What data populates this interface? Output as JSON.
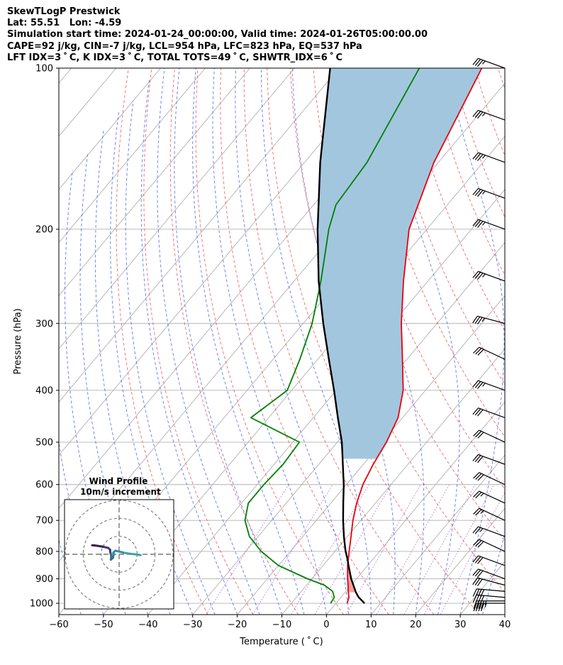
{
  "header": {
    "line1": "SkewTLogP Prestwick",
    "line2": "Lat: 55.51   Lon: -4.59",
    "line3": "Simulation start time: 2024-01-24_00:00:00, Valid time: 2024-01-26T05:00:00.00",
    "line4": "CAPE=92 j/kg, CIN=-7 j/kg, LCL=954 hPa, LFC=823 hPa, EQ=537 hPa",
    "line5": "LFT IDX=3 ˚ C, K IDX=3 ˚ C, TOTAL TOTS=49 ˚ C, SHWTR_IDX=6 ˚ C"
  },
  "chart_data": {
    "type": "line",
    "xlabel": "Temperature ( ˚ C)",
    "ylabel": "Pressure (hPa)",
    "xlim": [
      -60,
      40
    ],
    "ylim": [
      1050,
      100
    ],
    "y_scale": "log",
    "skew": true,
    "grid": true,
    "x_ticks": [
      -60,
      -50,
      -40,
      -30,
      -20,
      -10,
      0,
      10,
      20,
      30,
      40
    ],
    "x_tick_labels": [
      "−60",
      "−50",
      "−40",
      "−30",
      "−20",
      "−10",
      "0",
      "10",
      "20",
      "30",
      "40"
    ],
    "y_ticks": [
      1000,
      900,
      800,
      700,
      600,
      500,
      400,
      300,
      200,
      100
    ],
    "y_tick_labels": [
      "1000",
      "900",
      "800",
      "700",
      "600",
      "500",
      "400",
      "300",
      "200",
      "100"
    ],
    "series": [
      {
        "role": "temperature",
        "color": "#e8000b",
        "points": [
          [
            1000,
            2.5
          ],
          [
            975,
            1.8
          ],
          [
            950,
            0.5
          ],
          [
            925,
            -0.7
          ],
          [
            900,
            -2.0
          ],
          [
            850,
            -4.5
          ],
          [
            800,
            -6.8
          ],
          [
            750,
            -9.2
          ],
          [
            700,
            -11.8
          ],
          [
            650,
            -14.2
          ],
          [
            600,
            -16.3
          ],
          [
            550,
            -17.8
          ],
          [
            500,
            -19.0
          ],
          [
            450,
            -21.0
          ],
          [
            400,
            -25.0
          ],
          [
            350,
            -31.0
          ],
          [
            300,
            -38.0
          ],
          [
            250,
            -45.5
          ],
          [
            200,
            -54.0
          ],
          [
            150,
            -61.0
          ],
          [
            100,
            -68.0
          ]
        ]
      },
      {
        "role": "dewpoint",
        "color": "#008000",
        "points": [
          [
            1000,
            -1.2
          ],
          [
            975,
            -1.5
          ],
          [
            950,
            -3.0
          ],
          [
            925,
            -6.0
          ],
          [
            900,
            -11.0
          ],
          [
            850,
            -20.0
          ],
          [
            800,
            -26.5
          ],
          [
            750,
            -32.0
          ],
          [
            700,
            -36.0
          ],
          [
            650,
            -38.5
          ],
          [
            600,
            -38.5
          ],
          [
            550,
            -38.0
          ],
          [
            500,
            -38.5
          ],
          [
            450,
            -54.0
          ],
          [
            400,
            -51.0
          ],
          [
            350,
            -54.0
          ],
          [
            300,
            -58.0
          ],
          [
            250,
            -64.0
          ],
          [
            200,
            -72.0
          ],
          [
            180,
            -75.0
          ],
          [
            150,
            -76.0
          ],
          [
            100,
            -82.0
          ]
        ]
      },
      {
        "role": "parcel",
        "color": "#000000",
        "points": [
          [
            1000,
            6.4
          ],
          [
            975,
            4.0
          ],
          [
            954,
            2.4
          ],
          [
            925,
            0.5
          ],
          [
            900,
            -1.2
          ],
          [
            850,
            -4.3
          ],
          [
            823,
            -6.0
          ],
          [
            800,
            -7.6
          ],
          [
            750,
            -10.8
          ],
          [
            700,
            -14.0
          ],
          [
            650,
            -17.2
          ],
          [
            600,
            -20.6
          ],
          [
            550,
            -24.6
          ],
          [
            537,
            -25.7
          ],
          [
            500,
            -29.0
          ],
          [
            450,
            -34.5
          ],
          [
            400,
            -40.5
          ],
          [
            350,
            -47.5
          ],
          [
            300,
            -55.5
          ],
          [
            250,
            -64.5
          ],
          [
            200,
            -74.5
          ],
          [
            150,
            -86.5
          ],
          [
            100,
            -102.0
          ]
        ]
      }
    ],
    "shading": [
      {
        "name": "CIN",
        "color": "#f3a0a2",
        "from_hpa": 823,
        "to_hpa": 954
      },
      {
        "name": "CAPE",
        "color": "#a3c6df",
        "from_hpa": 100,
        "to_hpa": 537
      }
    ],
    "wind_barbs": {
      "pressures": [
        1000,
        990,
        975,
        950,
        925,
        900,
        850,
        800,
        750,
        700,
        650,
        600,
        550,
        500,
        450,
        400,
        350,
        300,
        250,
        200,
        175,
        150,
        125,
        100
      ],
      "speed_kt": [
        45,
        45,
        40,
        40,
        30,
        30,
        30,
        30,
        25,
        25,
        25,
        30,
        30,
        30,
        30,
        35,
        30,
        35,
        35,
        35,
        35,
        35,
        35,
        35
      ],
      "direction_deg": [
        270,
        270,
        265,
        265,
        255,
        250,
        250,
        245,
        250,
        245,
        245,
        245,
        250,
        245,
        250,
        250,
        245,
        255,
        250,
        250,
        250,
        250,
        250,
        250
      ]
    },
    "hodograph": {
      "title_line1": "Wind Profile",
      "title_line2": "10m/s increment",
      "ring_speeds_ms": [
        10,
        20,
        30
      ],
      "max_speed_ms": 30,
      "trace_uv_ms": [
        [
          -15,
          5
        ],
        [
          -14,
          5
        ],
        [
          -12,
          4.7
        ],
        [
          -10,
          4.4
        ],
        [
          -8,
          4.0
        ],
        [
          -6,
          3.5
        ],
        [
          -5,
          2.5
        ],
        [
          -5,
          1.5
        ],
        [
          -4.6,
          0
        ],
        [
          -4.4,
          -1.5
        ],
        [
          -4.6,
          -3
        ],
        [
          -3.5,
          -2
        ],
        [
          -3,
          0
        ],
        [
          -3.2,
          1.0
        ],
        [
          -2,
          2
        ],
        [
          0,
          1.5
        ],
        [
          3,
          0.8
        ],
        [
          6,
          0.3
        ],
        [
          9,
          0
        ],
        [
          12,
          -0.5
        ]
      ],
      "colors": [
        "#3b1f4a",
        "#403a7a",
        "#2f6f8f",
        "#2a8fa6",
        "#3aa7a0"
      ]
    }
  }
}
